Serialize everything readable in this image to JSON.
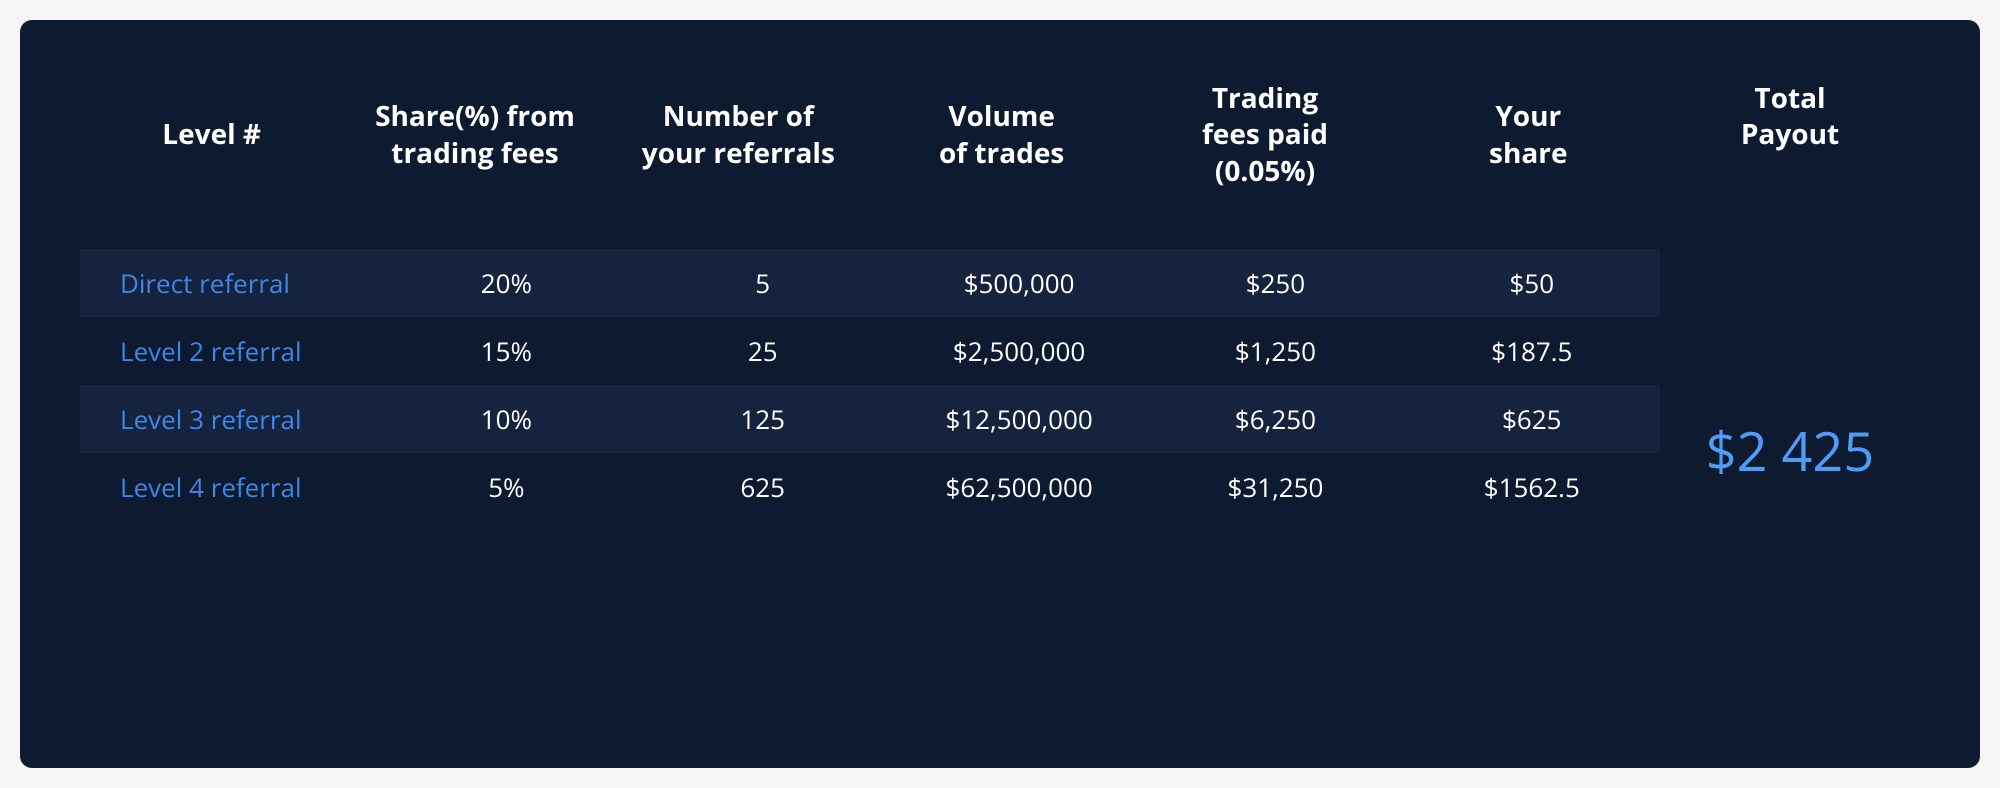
{
  "table": {
    "type": "table",
    "background_color": "#0e1a2f",
    "row_alt_color": "#15233e",
    "header_text_color": "#ffffff",
    "body_text_color": "#ffffff",
    "level_label_color": "#3d87e6",
    "payout_value_color": "#4e9cf6",
    "header_fontsize": 28,
    "body_fontsize": 26,
    "payout_fontsize": 54,
    "columns": [
      {
        "key": "level",
        "label_line1": "Level #",
        "label_line2": ""
      },
      {
        "key": "share_pct",
        "label_line1": "Share(%) from",
        "label_line2": "trading fees"
      },
      {
        "key": "num_referrals",
        "label_line1": "Number of",
        "label_line2": "your referrals"
      },
      {
        "key": "volume",
        "label_line1": "Volume",
        "label_line2": "of trades"
      },
      {
        "key": "fees_paid",
        "label_line1": "Trading",
        "label_line2": "fees paid",
        "label_line3": "(0.05%)"
      },
      {
        "key": "your_share",
        "label_line1": "Your",
        "label_line2": "share"
      }
    ],
    "rows": [
      {
        "level": "Direct referral",
        "share_pct": "20%",
        "num_referrals": "5",
        "volume": "$500,000",
        "fees_paid": "$250",
        "your_share": "$50"
      },
      {
        "level": "Level 2 referral",
        "share_pct": "15%",
        "num_referrals": "25",
        "volume": "$2,500,000",
        "fees_paid": "$1,250",
        "your_share": "$187.5"
      },
      {
        "level": "Level 3 referral",
        "share_pct": "10%",
        "num_referrals": "125",
        "volume": "$12,500,000",
        "fees_paid": "$6,250",
        "your_share": "$625"
      },
      {
        "level": "Level 4 referral",
        "share_pct": "5%",
        "num_referrals": "625",
        "volume": "$62,500,000",
        "fees_paid": "$31,250",
        "your_share": "$1562.5"
      }
    ],
    "payout": {
      "label_line1": "Total",
      "label_line2": "Payout",
      "value": "$2 425"
    }
  }
}
